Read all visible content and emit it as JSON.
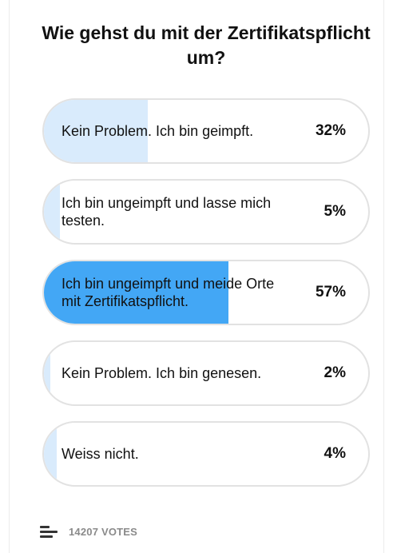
{
  "poll": {
    "title": "Wie gehst du mit der Zertifikatspflicht um?",
    "options": [
      {
        "label": "Kein Problem. Ich bin geimpft.",
        "percent_text": "32%",
        "percent": 32,
        "fill_color": "#d9ebfc"
      },
      {
        "label": "Ich bin ungeimpft und lasse mich testen.",
        "percent_text": "5%",
        "percent": 5,
        "fill_color": "#d9ebfc"
      },
      {
        "label": "Ich bin ungeimpft und meide Orte mit Zertifikatspflicht.",
        "percent_text": "57%",
        "percent": 57,
        "fill_color": "#43a7f5"
      },
      {
        "label": "Kein Problem. Ich bin genesen.",
        "percent_text": "2%",
        "percent": 2,
        "fill_color": "#d9ebfc"
      },
      {
        "label": "Weiss nicht.",
        "percent_text": "4%",
        "percent": 4,
        "fill_color": "#d9ebfc"
      }
    ],
    "votes_label": "14207 VOTES",
    "footer_icon": "menu-lines-icon"
  }
}
